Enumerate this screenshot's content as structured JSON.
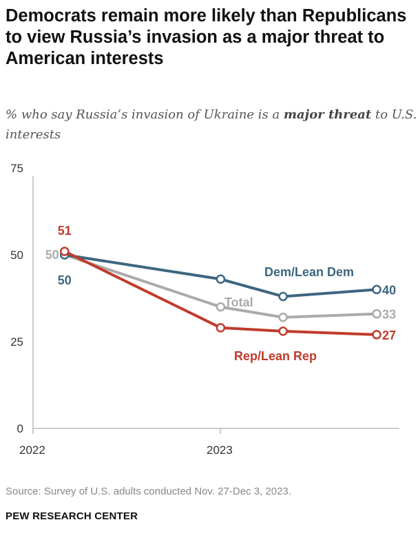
{
  "title": "Democrats remain more likely than Republicans to view Russia’s invasion as a major threat to American interests",
  "subtitle": {
    "pre": "% who say Russia’s invasion of Ukraine is a ",
    "bold": "major threat",
    "post": " to U.S. interests"
  },
  "source": "Source: Survey of U.S. adults conducted Nov. 27-Dec 3, 2023.",
  "brand": "PEW RESEARCH CENTER",
  "chart_data": {
    "type": "line",
    "x": [
      "2022-03",
      "2023-01",
      "2023-05",
      "2023-11"
    ],
    "xticks": [
      "2022",
      "2023"
    ],
    "yticks": [
      "0",
      "25",
      "50",
      "75"
    ],
    "ylim": [
      0,
      75
    ],
    "grid": false,
    "series": [
      {
        "name": "Dem/Lean Dem",
        "values": [
          50,
          43,
          38,
          40
        ],
        "color": "#3d6680",
        "first_label": "50",
        "last_label": "40"
      },
      {
        "name": "Total",
        "values": [
          50,
          35,
          32,
          33
        ],
        "color": "#aaaaaa",
        "first_label": "50",
        "last_label": "33"
      },
      {
        "name": "Rep/Lean Rep",
        "values": [
          51,
          29,
          28,
          27
        ],
        "color": "#bf3b2c",
        "first_label": "51",
        "last_label": "27"
      }
    ]
  }
}
